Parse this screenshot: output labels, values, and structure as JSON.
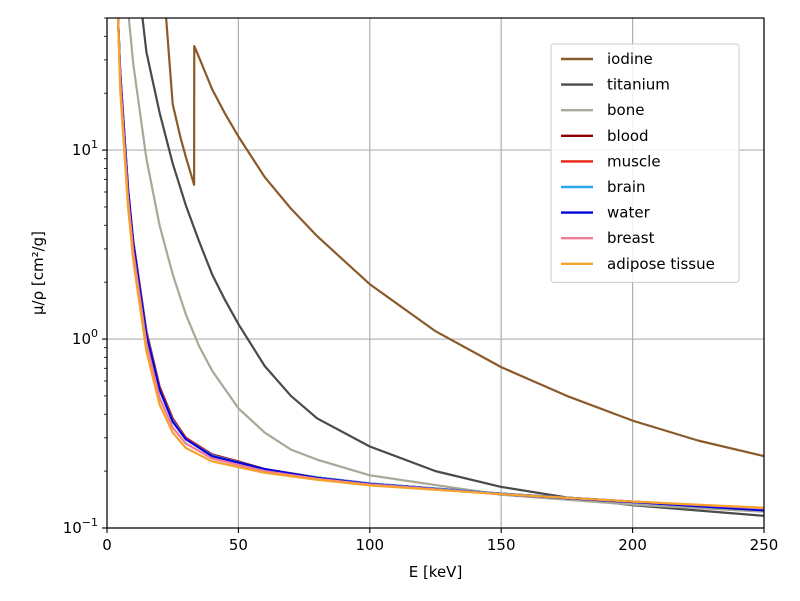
{
  "chart_data": {
    "type": "line",
    "xlabel": "E [keV]",
    "ylabel": "μ/ρ [cm²/g]",
    "xlim": [
      0,
      250
    ],
    "ylim": [
      0.1,
      50
    ],
    "yscale": "log",
    "grid": true,
    "legend_position": "top-right",
    "x_ticks": [
      0,
      50,
      100,
      150,
      200,
      250
    ],
    "x_tick_labels": [
      "0",
      "50",
      "100",
      "150",
      "200",
      "250"
    ],
    "y_ticks": [
      0.1,
      1,
      10
    ],
    "y_tick_labels": [
      {
        "base": "10",
        "exp": "−1"
      },
      {
        "base": "10",
        "exp": "0"
      },
      {
        "base": "10",
        "exp": "1"
      }
    ],
    "series": [
      {
        "name": "iodine",
        "color": "#8a5a2b",
        "x": [
          22.5,
          25,
          28,
          30,
          33.15,
          33.2,
          35,
          40,
          45,
          50,
          60,
          70,
          80,
          100,
          125,
          150,
          175,
          200,
          225,
          250
        ],
        "y": [
          50,
          17.5,
          11.6,
          9.2,
          6.55,
          35.5,
          31,
          21,
          15.5,
          11.8,
          7.2,
          4.9,
          3.5,
          1.95,
          1.1,
          0.71,
          0.5,
          0.37,
          0.29,
          0.24
        ]
      },
      {
        "name": "titanium",
        "color": "#4a4a4a",
        "x": [
          13.5,
          15,
          20,
          25,
          30,
          35,
          40,
          45,
          50,
          60,
          70,
          80,
          100,
          125,
          150,
          175,
          200,
          250
        ],
        "y": [
          50,
          33,
          15.8,
          8.5,
          5.1,
          3.3,
          2.2,
          1.6,
          1.2,
          0.72,
          0.5,
          0.38,
          0.27,
          0.2,
          0.165,
          0.145,
          0.132,
          0.116
        ]
      },
      {
        "name": "bone",
        "color": "#a8a898",
        "x": [
          8.3,
          10,
          15,
          20,
          25,
          30,
          35,
          40,
          50,
          60,
          70,
          80,
          100,
          150,
          200,
          250
        ],
        "y": [
          50,
          28.5,
          9.0,
          4.0,
          2.2,
          1.35,
          0.92,
          0.68,
          0.43,
          0.32,
          0.26,
          0.23,
          0.19,
          0.15,
          0.133,
          0.122
        ]
      },
      {
        "name": "blood",
        "color": "#8b0000",
        "x": [
          4.2,
          5,
          8,
          10,
          15,
          20,
          25,
          30,
          40,
          50,
          60,
          80,
          100,
          150,
          200,
          250
        ],
        "y": [
          50,
          26,
          6.3,
          3.3,
          1.1,
          0.56,
          0.38,
          0.3,
          0.245,
          0.225,
          0.205,
          0.185,
          0.172,
          0.152,
          0.138,
          0.126
        ]
      },
      {
        "name": "muscle",
        "color": "#e3230f",
        "x": [
          4.2,
          5,
          8,
          10,
          15,
          20,
          25,
          30,
          40,
          50,
          60,
          80,
          100,
          150,
          200,
          250
        ],
        "y": [
          50,
          26,
          6.2,
          3.25,
          1.08,
          0.55,
          0.375,
          0.3,
          0.243,
          0.224,
          0.204,
          0.185,
          0.172,
          0.152,
          0.138,
          0.126
        ]
      },
      {
        "name": "brain",
        "color": "#2ba6f0",
        "x": [
          4.2,
          5,
          8,
          10,
          15,
          20,
          25,
          30,
          40,
          50,
          60,
          80,
          100,
          150,
          200,
          250
        ],
        "y": [
          50,
          26,
          6.2,
          3.2,
          1.07,
          0.54,
          0.37,
          0.295,
          0.242,
          0.223,
          0.204,
          0.185,
          0.172,
          0.152,
          0.138,
          0.126
        ]
      },
      {
        "name": "water",
        "color": "#0000dd",
        "x": [
          4.2,
          5,
          8,
          10,
          15,
          20,
          25,
          30,
          40,
          50,
          60,
          80,
          100,
          150,
          200,
          250
        ],
        "y": [
          50,
          26,
          6.2,
          3.2,
          1.05,
          0.54,
          0.365,
          0.295,
          0.24,
          0.222,
          0.205,
          0.184,
          0.171,
          0.151,
          0.137,
          0.124
        ]
      },
      {
        "name": "breast",
        "color": "#f07a9a",
        "x": [
          4.2,
          5,
          8,
          10,
          15,
          20,
          25,
          30,
          40,
          50,
          60,
          80,
          100,
          150,
          200,
          250
        ],
        "y": [
          50,
          24,
          5.6,
          2.9,
          0.95,
          0.49,
          0.34,
          0.28,
          0.233,
          0.216,
          0.2,
          0.182,
          0.17,
          0.151,
          0.138,
          0.127
        ]
      },
      {
        "name": "adipose tissue",
        "color": "#f5a32a",
        "x": [
          4.2,
          5,
          8,
          10,
          15,
          20,
          25,
          30,
          40,
          50,
          60,
          80,
          100,
          150,
          200,
          250
        ],
        "y": [
          50,
          21,
          5.0,
          2.6,
          0.86,
          0.45,
          0.32,
          0.265,
          0.225,
          0.21,
          0.196,
          0.18,
          0.168,
          0.151,
          0.138,
          0.128
        ]
      }
    ]
  }
}
